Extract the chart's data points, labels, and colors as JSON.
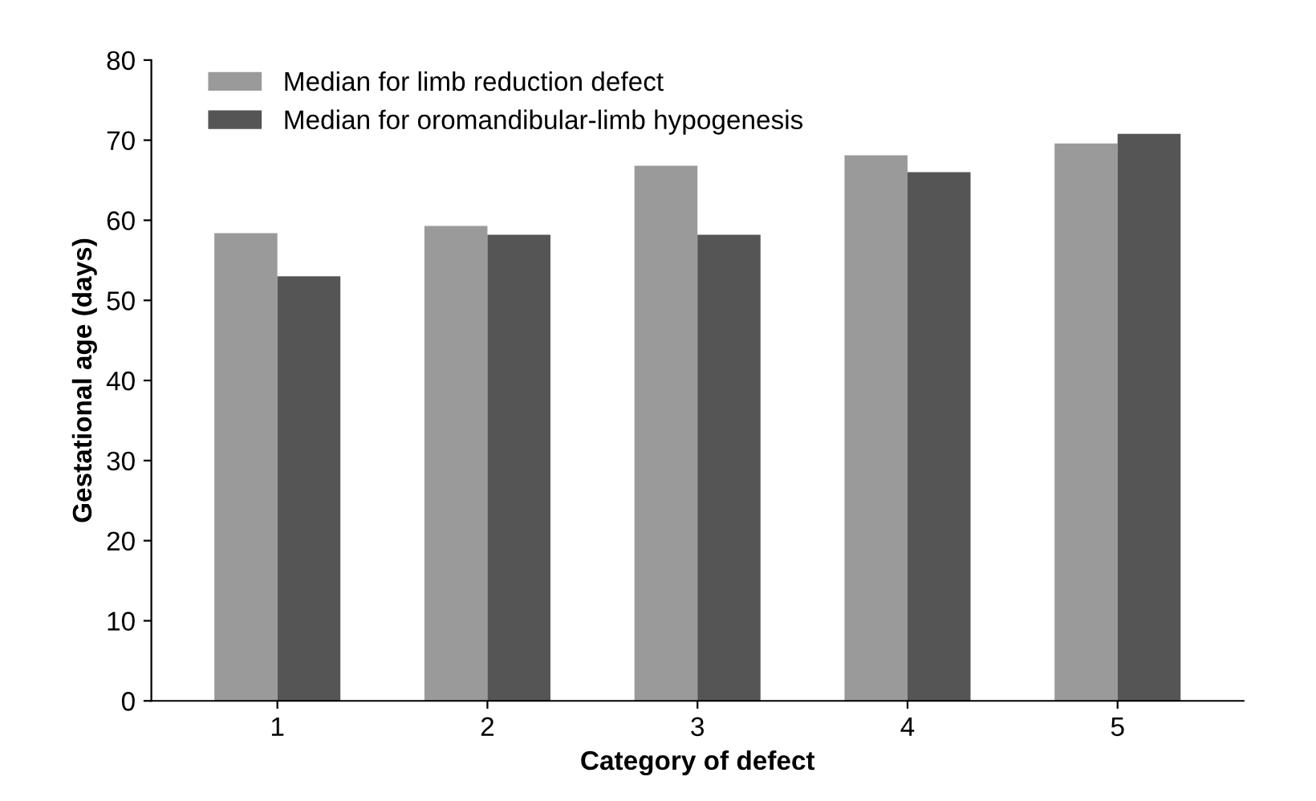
{
  "chart_data": {
    "type": "bar",
    "xlabel": "Category of defect",
    "ylabel": "Gestational age (days)",
    "categories": [
      "1",
      "2",
      "3",
      "4",
      "5"
    ],
    "series": [
      {
        "name": "Median for limb reduction defect",
        "color": "#9a9a9a",
        "values": [
          58.4,
          59.3,
          66.8,
          68.1,
          69.6
        ]
      },
      {
        "name": "Median for oromandibular-limb hypogenesis",
        "color": "#555555",
        "values": [
          53.0,
          58.2,
          58.2,
          66.0,
          70.8
        ]
      }
    ],
    "ylim": [
      0,
      80
    ],
    "yticks": [
      0,
      10,
      20,
      30,
      40,
      50,
      60,
      70,
      80
    ],
    "grid": false,
    "legend": "top left"
  }
}
